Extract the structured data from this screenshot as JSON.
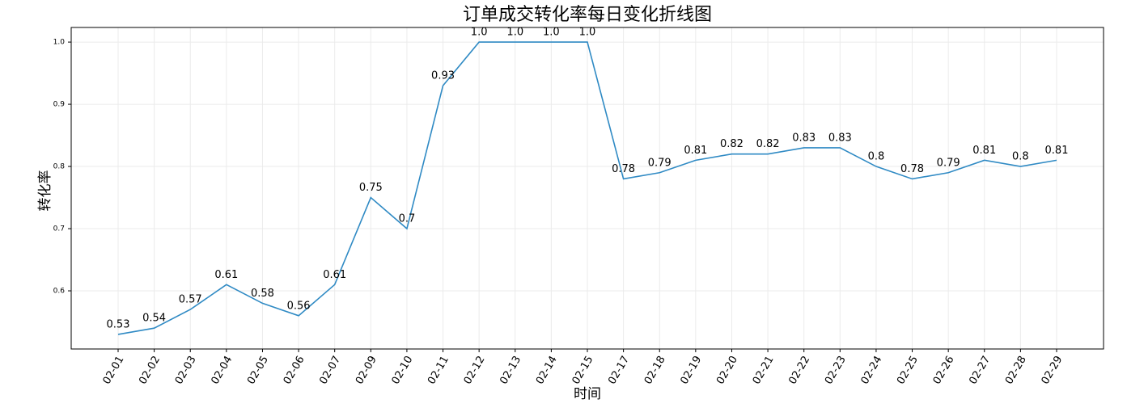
{
  "chart_data": {
    "type": "line",
    "title": "订单成交转化率每日变化折线图",
    "x_label": "时间",
    "y_label": "转化率",
    "categories": [
      "02-01",
      "02-02",
      "02-03",
      "02-04",
      "02-05",
      "02-06",
      "02-07",
      "02-09",
      "02-10",
      "02-11",
      "02-12",
      "02-13",
      "02-14",
      "02-15",
      "02-17",
      "02-18",
      "02-19",
      "02-20",
      "02-21",
      "02-22",
      "02-23",
      "02-24",
      "02-25",
      "02-26",
      "02-27",
      "02-28",
      "02-29"
    ],
    "values": [
      0.53,
      0.54,
      0.57,
      0.61,
      0.58,
      0.56,
      0.61,
      0.75,
      0.7,
      0.93,
      1.0,
      1.0,
      1.0,
      1.0,
      0.78,
      0.79,
      0.81,
      0.82,
      0.82,
      0.83,
      0.83,
      0.8,
      0.78,
      0.79,
      0.81,
      0.8,
      0.81
    ],
    "value_labels": [
      "0.53",
      "0.54",
      "0.57",
      "0.61",
      "0.58",
      "0.56",
      "0.61",
      "0.75",
      "0.7",
      "0.93",
      "1.0",
      "1.0",
      "1.0",
      "1.0",
      "0.78",
      "0.79",
      "0.81",
      "0.82",
      "0.82",
      "0.83",
      "0.83",
      "0.8",
      "0.78",
      "0.79",
      "0.81",
      "0.8",
      "0.81"
    ],
    "color": "#2f8ac4",
    "ylim": [
      0.5065,
      1.0235
    ],
    "yticks": [
      0.6,
      0.7,
      0.8,
      0.9,
      {
        "value": 1,
        "label": "1.0"
      }
    ],
    "grid": true
  }
}
